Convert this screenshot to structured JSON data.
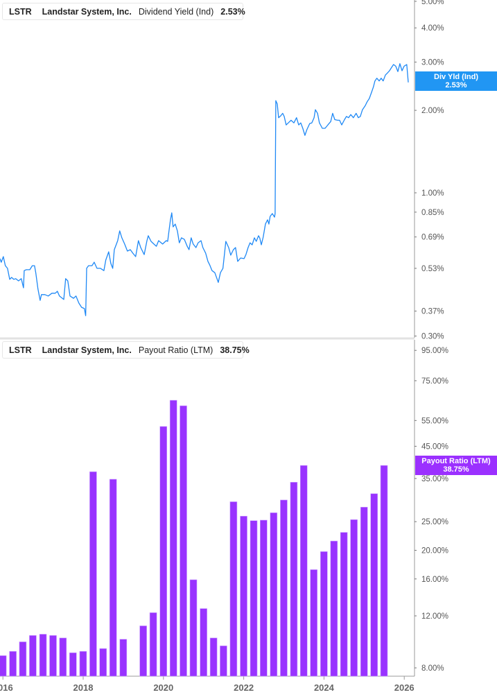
{
  "colors": {
    "yield_line": "#1e88f5",
    "payout_bars": "#9933ff",
    "yield_tag": "#2196f3",
    "payout_tag": "#9b30ff",
    "axis": "#9a9a9a"
  },
  "top_legend": {
    "ticker": "LSTR",
    "company": "Landstar System, Inc.",
    "metric": "Dividend Yield (Ind)",
    "value": "2.53%"
  },
  "bottom_legend": {
    "ticker": "LSTR",
    "company": "Landstar System, Inc.",
    "metric": "Payout Ratio (LTM)",
    "value": "38.75%"
  },
  "top_tag": {
    "label": "Div Yld (Ind)",
    "value": "2.53%"
  },
  "bottom_tag": {
    "label": "Payout Ratio (LTM)",
    "value": "38.75%"
  },
  "chart_data": [
    {
      "type": "line",
      "name": "Dividend Yield (Ind)",
      "y_scale": "log",
      "ylim": [
        0.3,
        5.0
      ],
      "y_axis_position": "right",
      "grid": false,
      "y_ticks": [
        {
          "value": 5.0,
          "label": "5.00%"
        },
        {
          "value": 4.0,
          "label": "4.00%"
        },
        {
          "value": 3.0,
          "label": "3.00%"
        },
        {
          "value": 2.0,
          "label": "2.00%"
        },
        {
          "value": 1.0,
          "label": "1.00%"
        },
        {
          "value": 0.85,
          "label": "0.85%"
        },
        {
          "value": 0.69,
          "label": "0.69%"
        },
        {
          "value": 0.53,
          "label": "0.53%"
        },
        {
          "value": 0.37,
          "label": "0.37%"
        },
        {
          "value": 0.3,
          "label": "0.30%"
        }
      ],
      "points": [
        [
          "2015-12-04",
          0.575
        ],
        [
          "2015-12-16",
          0.558
        ],
        [
          "2016-01-05",
          0.585
        ],
        [
          "2016-01-23",
          0.542
        ],
        [
          "2016-02-12",
          0.53
        ],
        [
          "2016-03-02",
          0.483
        ],
        [
          "2016-03-19",
          0.491
        ],
        [
          "2016-04-09",
          0.483
        ],
        [
          "2016-04-26",
          0.486
        ],
        [
          "2016-05-21",
          0.477
        ],
        [
          "2016-06-16",
          0.486
        ],
        [
          "2016-07-06",
          0.45
        ],
        [
          "2016-07-12",
          0.52
        ],
        [
          "2016-08-01",
          0.524
        ],
        [
          "2016-09-02",
          0.524
        ],
        [
          "2016-09-25",
          0.542
        ],
        [
          "2016-10-15",
          0.542
        ],
        [
          "2016-10-26",
          0.511
        ],
        [
          "2016-11-16",
          0.445
        ],
        [
          "2016-12-05",
          0.405
        ],
        [
          "2016-12-17",
          0.425
        ],
        [
          "2017-01-18",
          0.425
        ],
        [
          "2017-02-18",
          0.42
        ],
        [
          "2017-03-20",
          0.43
        ],
        [
          "2017-04-21",
          0.43
        ],
        [
          "2017-05-10",
          0.437
        ],
        [
          "2017-05-28",
          0.42
        ],
        [
          "2017-07-07",
          0.408
        ],
        [
          "2017-07-24",
          0.486
        ],
        [
          "2017-08-13",
          0.477
        ],
        [
          "2017-09-03",
          0.42
        ],
        [
          "2017-10-04",
          0.412
        ],
        [
          "2017-10-27",
          0.42
        ],
        [
          "2017-11-22",
          0.396
        ],
        [
          "2017-12-17",
          0.382
        ],
        [
          "2018-01-12",
          0.378
        ],
        [
          "2018-01-24",
          0.356
        ],
        [
          "2018-02-02",
          0.53
        ],
        [
          "2018-02-19",
          0.542
        ],
        [
          "2018-03-20",
          0.542
        ],
        [
          "2018-04-10",
          0.558
        ],
        [
          "2018-05-05",
          0.53
        ],
        [
          "2018-06-06",
          0.53
        ],
        [
          "2018-07-07",
          0.52
        ],
        [
          "2018-07-24",
          0.568
        ],
        [
          "2018-08-20",
          0.609
        ],
        [
          "2018-09-09",
          0.552
        ],
        [
          "2018-09-26",
          0.53
        ],
        [
          "2018-10-10",
          0.62
        ],
        [
          "2018-11-11",
          0.669
        ],
        [
          "2018-11-29",
          0.726
        ],
        [
          "2018-12-18",
          0.685
        ],
        [
          "2019-01-13",
          0.65
        ],
        [
          "2019-02-08",
          0.613
        ],
        [
          "2019-03-04",
          0.62
        ],
        [
          "2019-03-27",
          0.602
        ],
        [
          "2019-04-22",
          0.585
        ],
        [
          "2019-05-17",
          0.669
        ],
        [
          "2019-06-07",
          0.631
        ],
        [
          "2019-07-08",
          0.595
        ],
        [
          "2019-08-03",
          0.669
        ],
        [
          "2019-08-15",
          0.697
        ],
        [
          "2019-09-10",
          0.665
        ],
        [
          "2019-10-05",
          0.65
        ],
        [
          "2019-10-28",
          0.638
        ],
        [
          "2019-11-18",
          0.669
        ],
        [
          "2019-12-24",
          0.65
        ],
        [
          "2020-01-26",
          0.669
        ],
        [
          "2020-02-09",
          0.665
        ],
        [
          "2020-02-21",
          0.726
        ],
        [
          "2020-03-04",
          0.797
        ],
        [
          "2020-03-16",
          0.845
        ],
        [
          "2020-03-28",
          0.751
        ],
        [
          "2020-04-17",
          0.769
        ],
        [
          "2020-05-06",
          0.726
        ],
        [
          "2020-05-24",
          0.657
        ],
        [
          "2020-06-13",
          0.685
        ],
        [
          "2020-07-09",
          0.676
        ],
        [
          "2020-08-04",
          0.638
        ],
        [
          "2020-08-21",
          0.62
        ],
        [
          "2020-09-10",
          0.685
        ],
        [
          "2020-09-28",
          0.65
        ],
        [
          "2020-10-23",
          0.631
        ],
        [
          "2020-11-12",
          0.657
        ],
        [
          "2020-12-08",
          0.669
        ],
        [
          "2020-12-25",
          0.631
        ],
        [
          "2021-01-20",
          0.602
        ],
        [
          "2021-02-10",
          0.562
        ],
        [
          "2021-02-27",
          0.545
        ],
        [
          "2021-03-17",
          0.52
        ],
        [
          "2021-04-12",
          0.511
        ],
        [
          "2021-05-01",
          0.486
        ],
        [
          "2021-05-13",
          0.471
        ],
        [
          "2021-06-02",
          0.511
        ],
        [
          "2021-06-25",
          0.53
        ],
        [
          "2021-07-21",
          0.665
        ],
        [
          "2021-08-16",
          0.631
        ],
        [
          "2021-09-05",
          0.592
        ],
        [
          "2021-09-29",
          0.62
        ],
        [
          "2021-10-18",
          0.631
        ],
        [
          "2021-11-07",
          0.562
        ],
        [
          "2021-12-03",
          0.578
        ],
        [
          "2022-01-04",
          0.575
        ],
        [
          "2022-01-21",
          0.595
        ],
        [
          "2022-02-10",
          0.631
        ],
        [
          "2022-02-28",
          0.657
        ],
        [
          "2022-03-17",
          0.646
        ],
        [
          "2022-04-07",
          0.685
        ],
        [
          "2022-04-24",
          0.665
        ],
        [
          "2022-05-14",
          0.697
        ],
        [
          "2022-05-25",
          0.685
        ],
        [
          "2022-06-09",
          0.646
        ],
        [
          "2022-06-26",
          0.689
        ],
        [
          "2022-07-16",
          0.769
        ],
        [
          "2022-08-05",
          0.797
        ],
        [
          "2022-08-17",
          0.769
        ],
        [
          "2022-08-28",
          0.82
        ],
        [
          "2022-09-18",
          0.84
        ],
        [
          "2022-10-07",
          0.815
        ],
        [
          "2022-10-13",
          0.84
        ],
        [
          "2022-10-19",
          2.17
        ],
        [
          "2022-11-02",
          2.11
        ],
        [
          "2022-11-14",
          1.88
        ],
        [
          "2022-12-03",
          1.91
        ],
        [
          "2022-12-21",
          1.95
        ],
        [
          "2023-01-04",
          1.9
        ],
        [
          "2023-01-22",
          1.77
        ],
        [
          "2023-02-11",
          1.8
        ],
        [
          "2023-03-06",
          1.84
        ],
        [
          "2023-04-01",
          1.8
        ],
        [
          "2023-04-25",
          1.88
        ],
        [
          "2023-05-14",
          1.77
        ],
        [
          "2023-06-03",
          1.8
        ],
        [
          "2023-06-21",
          1.72
        ],
        [
          "2023-07-10",
          1.62
        ],
        [
          "2023-07-28",
          1.7
        ],
        [
          "2023-08-23",
          1.79
        ],
        [
          "2023-09-12",
          1.8
        ],
        [
          "2023-10-02",
          1.88
        ],
        [
          "2023-10-14",
          2.01
        ],
        [
          "2023-11-03",
          1.95
        ],
        [
          "2023-11-20",
          1.8
        ],
        [
          "2023-12-16",
          1.72
        ],
        [
          "2024-01-11",
          1.72
        ],
        [
          "2024-02-06",
          1.77
        ],
        [
          "2024-03-01",
          1.82
        ],
        [
          "2024-03-19",
          1.95
        ],
        [
          "2024-04-08",
          1.85
        ],
        [
          "2024-05-03",
          1.84
        ],
        [
          "2024-05-21",
          1.84
        ],
        [
          "2024-06-10",
          1.77
        ],
        [
          "2024-07-05",
          1.85
        ],
        [
          "2024-07-23",
          1.9
        ],
        [
          "2024-08-12",
          1.88
        ],
        [
          "2024-09-01",
          1.93
        ],
        [
          "2024-09-25",
          1.88
        ],
        [
          "2024-10-20",
          1.95
        ],
        [
          "2024-11-09",
          1.88
        ],
        [
          "2024-11-27",
          1.9
        ],
        [
          "2024-12-16",
          2.01
        ],
        [
          "2025-01-11",
          2.08
        ],
        [
          "2025-01-29",
          2.15
        ],
        [
          "2025-02-18",
          2.21
        ],
        [
          "2025-03-08",
          2.33
        ],
        [
          "2025-03-25",
          2.44
        ],
        [
          "2025-04-08",
          2.56
        ],
        [
          "2025-04-26",
          2.62
        ],
        [
          "2025-05-16",
          2.56
        ],
        [
          "2025-06-04",
          2.62
        ],
        [
          "2025-06-22",
          2.56
        ],
        [
          "2025-07-12",
          2.69
        ],
        [
          "2025-08-01",
          2.74
        ],
        [
          "2025-08-19",
          2.79
        ],
        [
          "2025-09-08",
          2.87
        ],
        [
          "2025-09-25",
          2.94
        ],
        [
          "2025-10-15",
          2.9
        ],
        [
          "2025-11-04",
          2.77
        ],
        [
          "2025-11-22",
          2.96
        ],
        [
          "2025-12-11",
          2.79
        ],
        [
          "2025-12-30",
          2.9
        ],
        [
          "2026-01-24",
          2.94
        ],
        [
          "2026-02-07",
          2.53
        ]
      ]
    },
    {
      "type": "bar",
      "name": "Payout Ratio (LTM)",
      "y_scale": "log",
      "ylim": [
        7.5,
        95.0
      ],
      "y_axis_position": "right",
      "grid": false,
      "y_ticks": [
        {
          "value": 95,
          "label": "95.00%"
        },
        {
          "value": 75,
          "label": "75.00%"
        },
        {
          "value": 55,
          "label": "55.00%"
        },
        {
          "value": 45,
          "label": "45.00%"
        },
        {
          "value": 35,
          "label": "35.00%"
        },
        {
          "value": 25,
          "label": "25.00%"
        },
        {
          "value": 20,
          "label": "20.00%"
        },
        {
          "value": 16,
          "label": "16.00%"
        },
        {
          "value": 12,
          "label": "12.00%"
        },
        {
          "value": 8,
          "label": "8.00%"
        }
      ],
      "x_ticks": [
        "2016",
        "2018",
        "2020",
        "2022",
        "2024",
        "2026"
      ],
      "bars": [
        [
          "2015-12-31",
          8.8
        ],
        [
          "2016-03-31",
          9.1
        ],
        [
          "2016-06-30",
          9.8
        ],
        [
          "2016-09-30",
          10.3
        ],
        [
          "2016-12-31",
          10.4
        ],
        [
          "2017-03-31",
          10.3
        ],
        [
          "2017-06-30",
          10.1
        ],
        [
          "2017-09-30",
          9.0
        ],
        [
          "2017-12-31",
          9.1
        ],
        [
          "2018-03-31",
          36.9
        ],
        [
          "2018-06-30",
          9.3
        ],
        [
          "2018-09-30",
          34.8
        ],
        [
          "2018-12-31",
          10.0
        ],
        [
          "2019-03-31",
          null
        ],
        [
          "2019-06-30",
          11.1
        ],
        [
          "2019-09-30",
          12.3
        ],
        [
          "2019-12-31",
          52.5
        ],
        [
          "2020-03-31",
          64.4
        ],
        [
          "2020-06-30",
          61.7
        ],
        [
          "2020-09-30",
          15.9
        ],
        [
          "2020-12-31",
          12.7
        ],
        [
          "2021-03-31",
          10.1
        ],
        [
          "2021-06-30",
          9.5
        ],
        [
          "2021-09-30",
          29.2
        ],
        [
          "2021-12-31",
          26.1
        ],
        [
          "2022-03-31",
          25.2
        ],
        [
          "2022-06-30",
          25.3
        ],
        [
          "2022-09-30",
          26.8
        ],
        [
          "2022-12-31",
          29.6
        ],
        [
          "2023-03-31",
          34.0
        ],
        [
          "2023-06-30",
          38.75
        ],
        [
          "2023-09-30",
          17.2
        ],
        [
          "2023-12-31",
          19.8
        ],
        [
          "2024-03-31",
          21.5
        ],
        [
          "2024-06-30",
          23.0
        ],
        [
          "2024-09-30",
          25.4
        ],
        [
          "2024-12-31",
          28.0
        ],
        [
          "2025-03-31",
          31.1
        ],
        [
          "2025-06-30",
          38.75
        ]
      ]
    }
  ]
}
